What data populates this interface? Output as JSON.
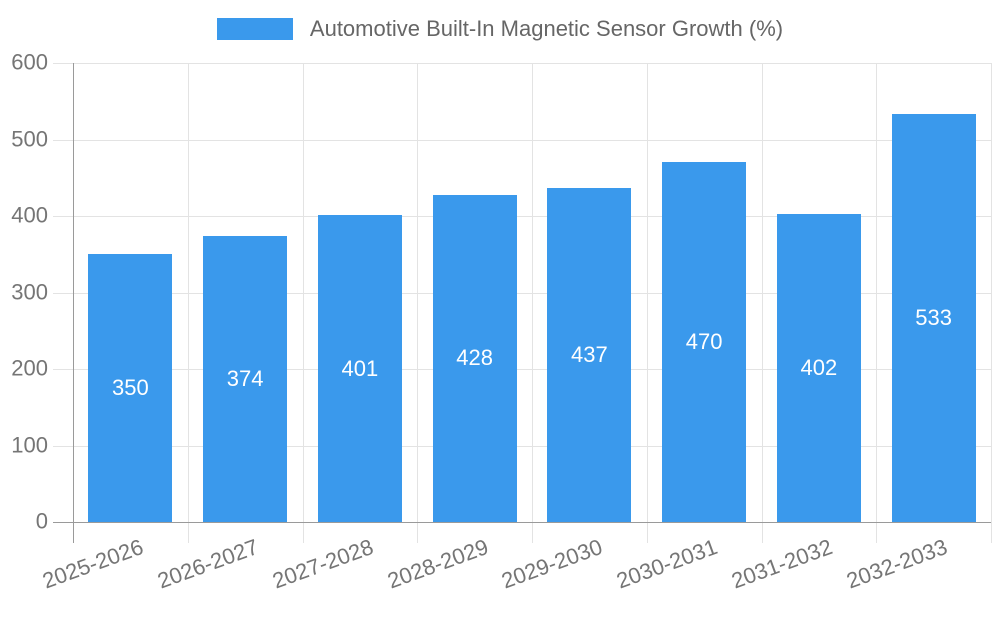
{
  "legend": {
    "label": "Automotive Built-In Magnetic Sensor Growth (%)"
  },
  "colors": {
    "bar": "#3A99EC",
    "grid": "#E3E3E3",
    "axis": "#9A9A9A",
    "tick_text": "#757575",
    "legend_text": "#666666",
    "value_text": "#FFFFFF",
    "background": "#FFFFFF"
  },
  "chart_data": {
    "type": "bar",
    "title": "Automotive Built-In Magnetic Sensor Growth (%)",
    "categories": [
      "2025-2026",
      "2026-2027",
      "2027-2028",
      "2028-2029",
      "2029-2030",
      "2030-2031",
      "2031-2032",
      "2032-2033"
    ],
    "values": [
      350,
      374,
      401,
      428,
      437,
      470,
      402,
      533
    ],
    "xlabel": "",
    "ylabel": "",
    "ylim": [
      0,
      600
    ],
    "yticks": [
      0,
      100,
      200,
      300,
      400,
      500,
      600
    ],
    "grid": true,
    "legend_position": "top-center",
    "value_labels_position": "inside-center",
    "x_label_rotation_deg": -20
  }
}
